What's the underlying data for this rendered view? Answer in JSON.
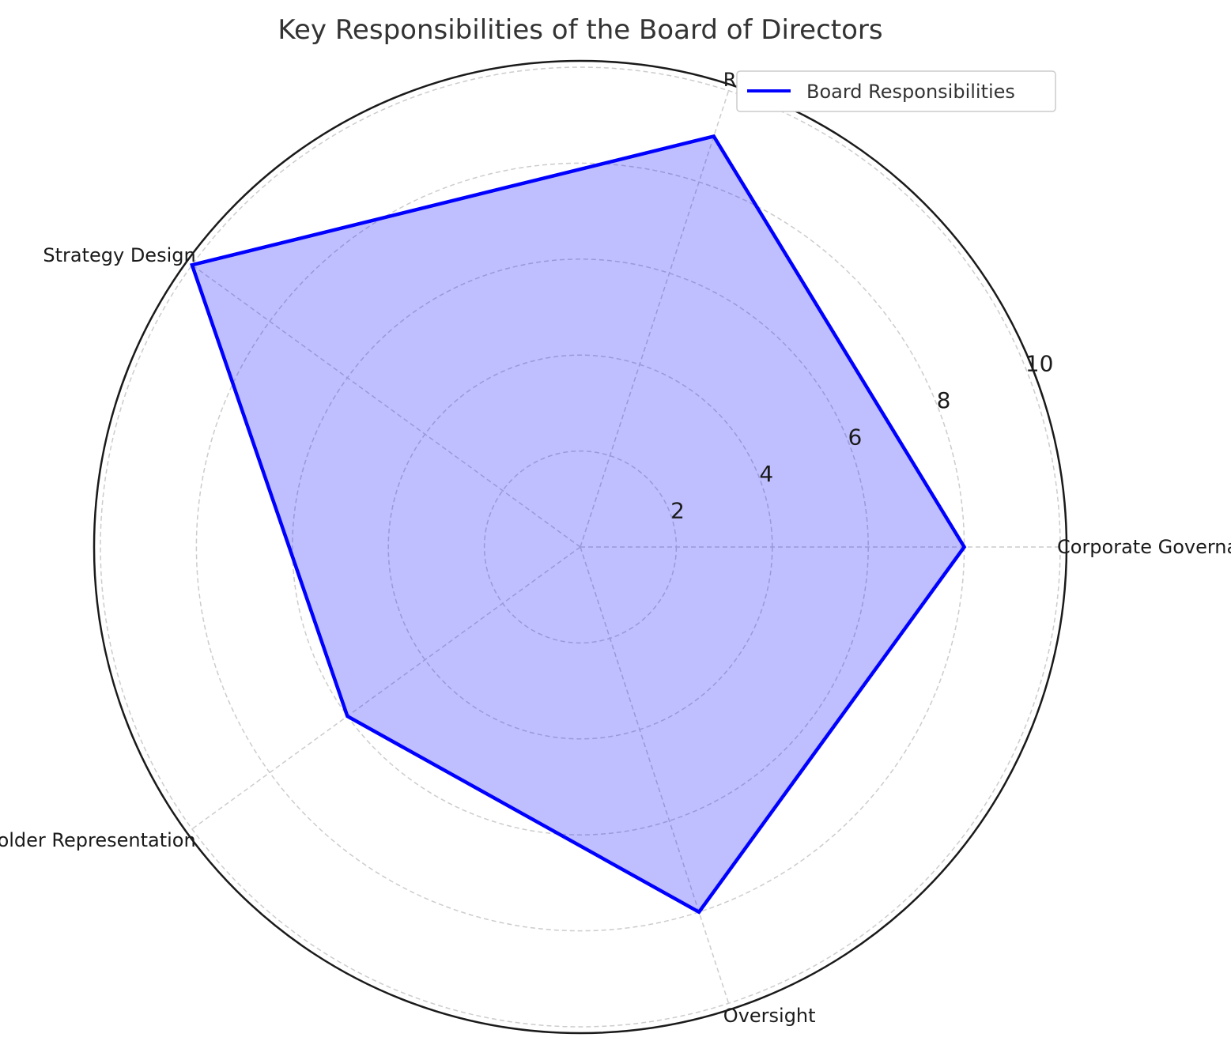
{
  "chart_data": {
    "type": "radar",
    "title": "Key Responsibilities of the Board of Directors",
    "categories": [
      "Corporate Governance",
      "Risk Management",
      "Strategy Design",
      "Stakeholder Representation",
      "Oversight"
    ],
    "series": [
      {
        "name": "Board Responsibilities",
        "values": [
          8,
          9,
          10,
          6,
          8
        ]
      }
    ],
    "rlim": [
      0,
      10
    ],
    "rticks": [
      2,
      4,
      6,
      8,
      10
    ],
    "rtick_labels": [
      "2",
      "4",
      "6",
      "8",
      "10"
    ],
    "grid": true,
    "legend_position": "top-right",
    "colors": {
      "line": "#0000ff",
      "fill": "#0000ff",
      "grid": "#cccccc",
      "frame": "#1a1a1a"
    }
  }
}
